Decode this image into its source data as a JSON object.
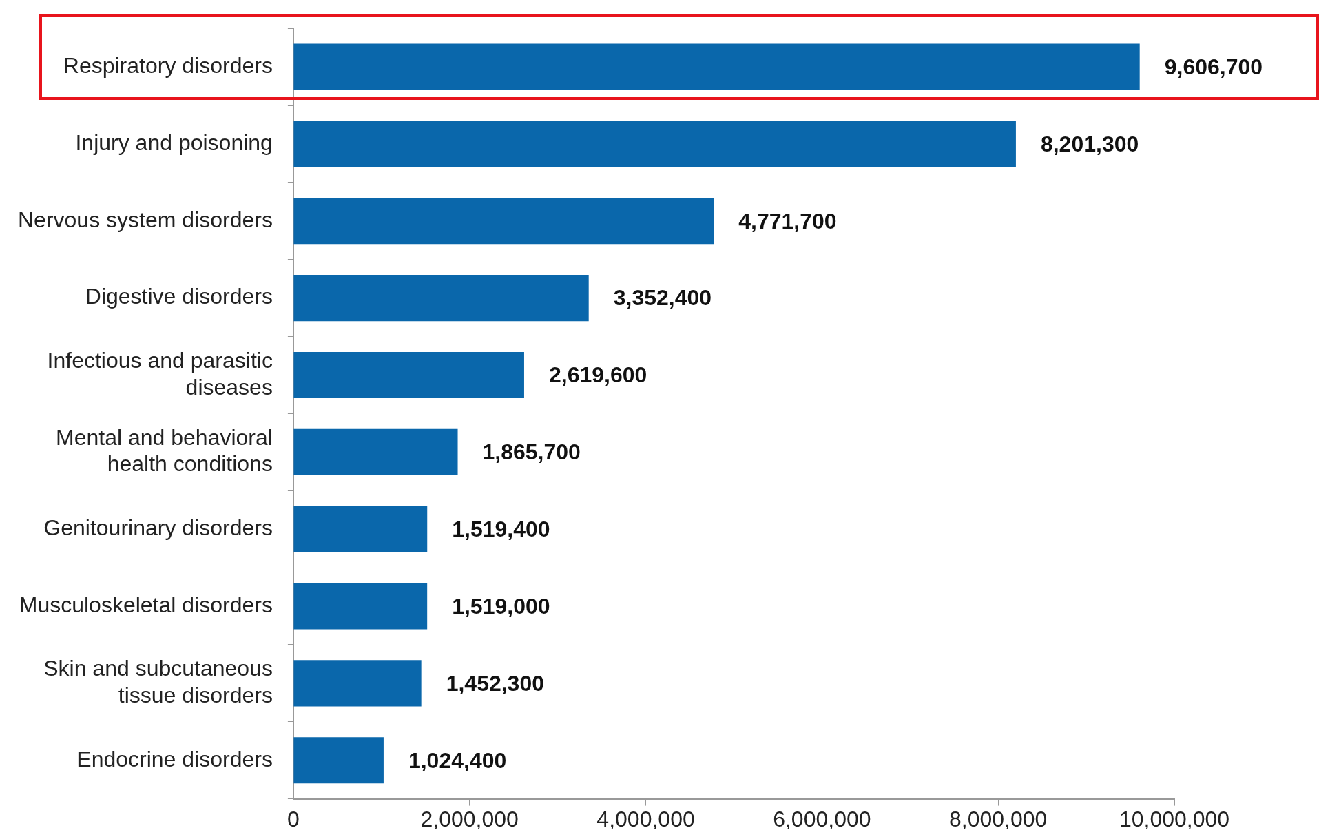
{
  "chart_data": {
    "type": "bar",
    "orientation": "horizontal",
    "categories": [
      "Respiratory disorders",
      "Injury and poisoning",
      "Nervous system disorders",
      "Digestive disorders",
      "Infectious and parasitic diseases",
      "Mental and behavioral health conditions",
      "Genitourinary disorders",
      "Musculoskeletal disorders",
      "Skin and subcutaneous tissue disorders",
      "Endocrine disorders"
    ],
    "values": [
      9606700,
      8201300,
      4771700,
      3352400,
      2619600,
      1865700,
      1519400,
      1519000,
      1452300,
      1024400
    ],
    "color": "#0a67ab",
    "xlim": [
      0,
      10000000
    ],
    "xticks": [
      0,
      {
        "value": 2000000,
        "label": "2,000,000"
      },
      {
        "value": 4000000,
        "label": "4,000,000"
      },
      {
        "value": 6000000,
        "label": "6,000,000"
      },
      {
        "value": 8000000,
        "label": "8,000,000"
      },
      {
        "value": 10000000,
        "label": "10,000,000"
      }
    ],
    "value_labels": [
      "9,606,700",
      "8,201,300",
      "4,771,700",
      "3,352,400",
      "2,619,600",
      "1,865,700",
      "1,519,400",
      "1,519,000",
      "1,452,300",
      "1,024,400"
    ],
    "grid": false
  }
}
